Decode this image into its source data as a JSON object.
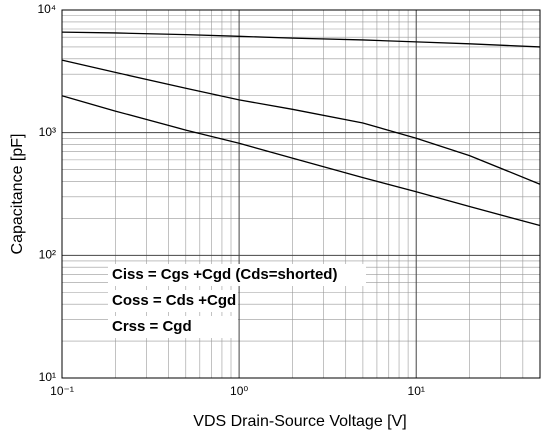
{
  "chart_data": {
    "type": "line",
    "xlabel": "VDS Drain-Source Voltage [V]",
    "ylabel": "Capacitance [pF]",
    "x": [
      0.1,
      0.2,
      0.5,
      1,
      2,
      5,
      10,
      20,
      50
    ],
    "series": [
      {
        "name": "Ciss",
        "color": "#000000",
        "values": [
          6600,
          6500,
          6300,
          6100,
          5900,
          5700,
          5500,
          5300,
          5000
        ]
      },
      {
        "name": "Coss",
        "color": "#000000",
        "values": [
          3900,
          3100,
          2300,
          1850,
          1550,
          1200,
          900,
          650,
          380
        ]
      },
      {
        "name": "Crss",
        "color": "#000000",
        "values": [
          2000,
          1500,
          1050,
          820,
          620,
          430,
          330,
          250,
          175
        ]
      }
    ],
    "annotations": [
      "Ciss = Cgs +Cgd  (Cds=shorted)",
      "Coss = Cds +Cgd",
      "Crss = Cgd"
    ],
    "xlim": [
      0.1,
      50
    ],
    "ylim": [
      10,
      10000
    ],
    "xticks": [
      {
        "value": 0.1,
        "label": "10⁻¹"
      },
      {
        "value": 1,
        "label": "10⁰"
      },
      {
        "value": 10,
        "label": "10¹"
      }
    ],
    "yticks": [
      {
        "value": 10,
        "label": "10¹"
      },
      {
        "value": 100,
        "label": "10²"
      },
      {
        "value": 1000,
        "label": "10³"
      },
      {
        "value": 10000,
        "label": "10⁴"
      }
    ],
    "xscale": "log",
    "yscale": "log",
    "grid": true
  }
}
